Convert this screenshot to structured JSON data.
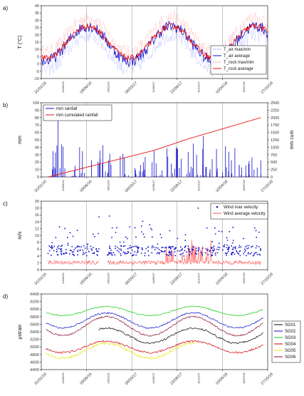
{
  "chart_data": [
    {
      "type": "line",
      "panel": "a)",
      "ylabel": "T (°C)",
      "ylim": [
        -10,
        40
      ],
      "yticks": [
        -10,
        -5,
        0,
        5,
        10,
        15,
        20,
        25,
        30,
        35,
        40
      ],
      "legend_position": "bottom-right",
      "series": [
        {
          "name": "T_air max/min",
          "color": "#9aa0ff",
          "style": "dashed"
        },
        {
          "name": "T_air average",
          "color": "#1010cc",
          "style": "solid"
        },
        {
          "name": "T_rock max/min",
          "color": "#ff9a9a",
          "style": "dashed"
        },
        {
          "name": "T_rock average",
          "color": "#ee1111",
          "style": "solid"
        }
      ],
      "x": [
        "31/01/16",
        "18/06/16",
        "06/03/17",
        "22/09/17",
        "10/04/18",
        "27/10/18"
      ],
      "values_avg": [
        10,
        22,
        2,
        31,
        5,
        22
      ]
    },
    {
      "type": "bar",
      "panel": "b)",
      "ylabel": "mm",
      "ylabel_right": "mm cum",
      "ylim": [
        0,
        100
      ],
      "yticks": [
        0,
        10,
        20,
        30,
        40,
        50,
        60,
        70,
        80,
        90,
        100
      ],
      "ylim_right": [
        0,
        2500
      ],
      "yticks_right": [
        0,
        250,
        500,
        750,
        1000,
        1250,
        1500,
        1750,
        2000,
        2250,
        2500
      ],
      "legend_position": "top-left",
      "series": [
        {
          "name": "mm rainfall",
          "color": "#1010cc"
        },
        {
          "name": "mm cumulated rainfall",
          "color": "#ee1111"
        }
      ],
      "cumulative": [
        0,
        300,
        600,
        900,
        1300,
        1650,
        2000
      ],
      "max_rainfall": 82
    },
    {
      "type": "scatter",
      "panel": "c)",
      "ylabel": "m/s",
      "ylim": [
        0,
        20
      ],
      "yticks": [
        0,
        2,
        4,
        6,
        8,
        10,
        12,
        14,
        16,
        18,
        20
      ],
      "legend_position": "top-right",
      "series": [
        {
          "name": "Wind max velocity",
          "color": "#1010cc"
        },
        {
          "name": "Wind average velocity",
          "color": "#ff5555"
        }
      ]
    },
    {
      "type": "line",
      "panel": "d)",
      "ylabel": "μstrain",
      "ylim": [
        -6400,
        -4400
      ],
      "yticks": [
        -6400,
        -6200,
        -6000,
        -5800,
        -5600,
        -5400,
        -5200,
        -5000,
        -4800,
        -4600,
        -4400
      ],
      "legend_position": "right",
      "series": [
        {
          "name": "SG01",
          "color": "#000000"
        },
        {
          "name": "SG02",
          "color": "#1010cc"
        },
        {
          "name": "SG03",
          "color": "#11cc11"
        },
        {
          "name": "SG04",
          "color": "#cc0000"
        },
        {
          "name": "SG05",
          "color": "#e6e600"
        },
        {
          "name": "SG06",
          "color": "#8b0a2a"
        }
      ]
    }
  ],
  "x_major_ticks": [
    "31/01/16",
    "18/06/16",
    "06/03/17",
    "22/09/17",
    "10/04/18",
    "27/10/18"
  ],
  "x_minor_ticks": [
    "10/05/16",
    "28/11/16",
    "14/06/17",
    "31/12/17",
    "18/07/18"
  ]
}
